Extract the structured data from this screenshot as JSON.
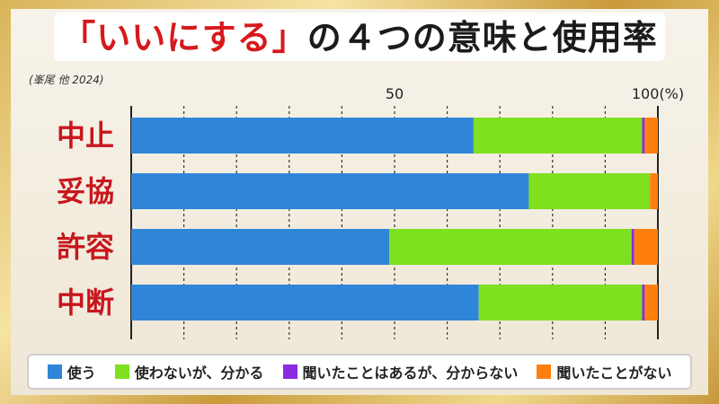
{
  "title": {
    "quoted": "「いいにする」",
    "rest": "の４つの意味と使用率"
  },
  "citation": "(峯尾 他 2024)",
  "colors": {
    "use": "#2f86d8",
    "understand": "#7ee01e",
    "heard": "#8a2be2",
    "never": "#ff7f0e",
    "label": "#c8161d"
  },
  "chart_data": {
    "type": "bar",
    "orientation": "horizontal",
    "stacked": true,
    "categories": [
      "中止",
      "妥協",
      "許容",
      "中断"
    ],
    "series": [
      {
        "name": "使う",
        "values": [
          65,
          75.5,
          49,
          66
        ]
      },
      {
        "name": "使わないが、分かる",
        "values": [
          32,
          23,
          46,
          31
        ]
      },
      {
        "name": "聞いたことはあるが、分からない",
        "values": [
          0.5,
          0,
          0.5,
          0.5
        ]
      },
      {
        "name": "聞いたことがない",
        "values": [
          2.5,
          1.5,
          4.5,
          2.5
        ]
      }
    ],
    "xlim": [
      0,
      100
    ],
    "tick_labels": [
      {
        "value": 50,
        "label": "50"
      },
      {
        "value": 100,
        "label": "100(%)"
      }
    ],
    "grid_step": 10,
    "legend_position": "bottom"
  }
}
